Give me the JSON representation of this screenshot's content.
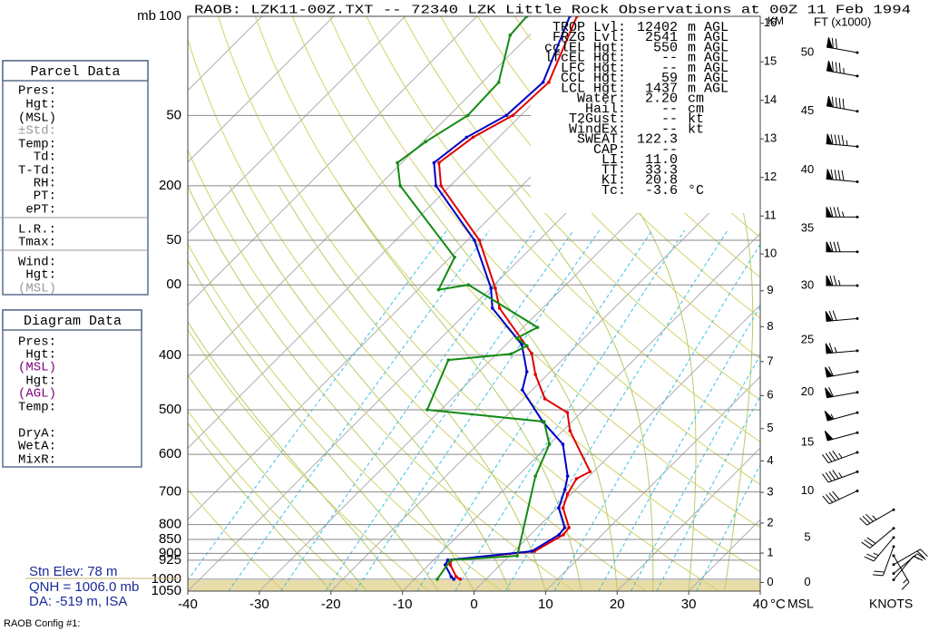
{
  "title": "RAOB:  LZK11-00Z.TXT  --  72340 LZK Little Rock Observations at 00Z 11 Feb 1994",
  "parcel_panel": {
    "title": "Parcel Data",
    "labels": [
      "Pres:",
      "Hgt:",
      "(MSL)",
      "±Std:",
      "Temp:",
      "Td:",
      "T-Td:",
      "RH:",
      "PT:",
      "ePT:",
      "L.R.:",
      "Tmax:",
      "Wind:",
      "Hgt:",
      "(MSL)"
    ]
  },
  "diagram_panel": {
    "title": "Diagram Data",
    "labels": [
      "Pres:",
      "Hgt:",
      "(MSL)",
      "Hgt:",
      "(AGL)",
      "Temp:",
      "DryA:",
      "WetA:",
      "MixR:"
    ]
  },
  "station": [
    "Stn Elev: 78 m",
    "QNH = 1006.0 mb",
    "DA: -519 m, ISA"
  ],
  "config": "RAOB Config #1:",
  "indices": [
    {
      "label": "TROP Lvl:",
      "value": "12402",
      "unit": "m AGL"
    },
    {
      "label": "FRZG Lvl:",
      "value": "2541",
      "unit": "m AGL"
    },
    {
      "label": "cclEL Hgt:",
      "value": "550",
      "unit": "m AGL"
    },
    {
      "label": "lfcEL Hgt:",
      "value": "--",
      "unit": "m AGL"
    },
    {
      "label": "LFC Hgt:",
      "value": "--",
      "unit": "m AGL"
    },
    {
      "label": "CCL Hgt:",
      "value": "59",
      "unit": "m AGL"
    },
    {
      "label": "LCL Hgt:",
      "value": "1437",
      "unit": "m AGL"
    },
    {
      "label": "Water:",
      "value": "2.20",
      "unit": "cm"
    },
    {
      "label": "Hail:",
      "value": "--",
      "unit": "cm"
    },
    {
      "label": "T2Gust:",
      "value": "--",
      "unit": "kt"
    },
    {
      "label": "WindEx:",
      "value": "--",
      "unit": "kt"
    },
    {
      "label": "SWEAT:",
      "value": "122.3"
    },
    {
      "label": "CAP:",
      "value": "--"
    },
    {
      "label": "LI:",
      "value": "11.0"
    },
    {
      "label": "TT:",
      "value": "33.3"
    },
    {
      "label": "KI:",
      "value": "20.8"
    },
    {
      "label": "Tc:",
      "value": "-3.6",
      "unit": "°C"
    }
  ],
  "diagram": {
    "pressure_unit": "mb",
    "pressure_lim": [
      100,
      1050
    ],
    "pressure_ticks": [
      100,
      {
        "value": 150,
        "label": "50"
      },
      200,
      {
        "value": 250,
        "label": "50"
      },
      {
        "value": 300,
        "label": "00"
      },
      400,
      500,
      600,
      700,
      800,
      850,
      900,
      925,
      1000,
      1050
    ],
    "temperature_lim": [
      -40,
      40
    ],
    "temperature_ticks": [
      -40,
      -30,
      -20,
      -10,
      0,
      10,
      20,
      30,
      40
    ],
    "temperature_unit": "°C",
    "km_label": "KM",
    "km_ticks": [
      0,
      1,
      2,
      3,
      4,
      5,
      6,
      7,
      8,
      9,
      10,
      11,
      12,
      13,
      14,
      15,
      16
    ],
    "ft_label": "FT (x1000)",
    "ft_ticks": [
      0,
      5,
      10,
      15,
      20,
      25,
      30,
      35,
      40,
      45,
      50
    ],
    "wind_labels": [
      "MSL",
      "KNOTS"
    ],
    "temperature": {
      "color": "#e00000",
      "pressure": [
        1000,
        990,
        943,
        925,
        892,
        834,
        810,
        747,
        706,
        663,
        644,
        545,
        506,
        478,
        433,
        397,
        330,
        304,
        250,
        200,
        182,
        164,
        150,
        131,
        100
      ],
      "values": [
        -3.6,
        -4.5,
        -7.0,
        -7.5,
        2.9,
        4.6,
        4.4,
        0.8,
        -0.5,
        -1.4,
        -0.5,
        -9.0,
        -11.9,
        -17.0,
        -21.7,
        -25.2,
        -36.0,
        -39.4,
        -48.3,
        -61.3,
        -64.8,
        -63.6,
        -61.1,
        -60.7,
        -66.0
      ]
    },
    "dewpoint": {
      "color": "#0000c8",
      "pressure": [
        1000,
        990,
        943,
        925,
        892,
        834,
        810,
        747,
        693,
        656,
        576,
        525,
        461,
        428,
        383,
        330,
        304,
        250,
        200,
        182,
        164,
        150,
        131,
        100
      ],
      "values": [
        -4.5,
        -5.2,
        -7.7,
        -8.0,
        2.5,
        4.0,
        3.8,
        0.2,
        -1.5,
        -3.0,
        -8.1,
        -14.1,
        -21.4,
        -23.3,
        -27.8,
        -37.0,
        -40.0,
        -49.0,
        -62.0,
        -65.5,
        -64.5,
        -62.0,
        -61.5,
        -67.0
      ]
    },
    "green_profile": {
      "color": "#138a13",
      "pressure": [
        1000,
        925,
        909,
        656,
        576,
        525,
        500,
        408,
        398,
        385,
        373,
        357,
        300,
        306,
        268,
        200,
        182,
        167,
        150,
        131,
        108,
        100
      ],
      "values": [
        -6.8,
        -7.6,
        1.1,
        -7.5,
        -10.0,
        -13.9,
        -31.9,
        -35.9,
        -28.0,
        -26.9,
        -29.4,
        -28.0,
        -43.6,
        -47.1,
        -49.4,
        -67.0,
        -70.6,
        -69.6,
        -67.4,
        -67.7,
        -72.7,
        -73.0
      ]
    },
    "winds": {
      "height": [
        0.3,
        1,
        2,
        3,
        4,
        5,
        6,
        8,
        10,
        12,
        14,
        16,
        18,
        20,
        22,
        24,
        27,
        30,
        33,
        36,
        39,
        42,
        45,
        48,
        50
      ],
      "direction": [
        40,
        50,
        60,
        150,
        200,
        220,
        230,
        240,
        245,
        250,
        250,
        255,
        255,
        260,
        260,
        265,
        265,
        270,
        270,
        270,
        275,
        275,
        280,
        280,
        280
      ],
      "speed": [
        10,
        15,
        20,
        15,
        20,
        25,
        30,
        35,
        40,
        45,
        45,
        50,
        55,
        60,
        60,
        65,
        70,
        75,
        80,
        85,
        90,
        95,
        90,
        85,
        70
      ]
    }
  }
}
